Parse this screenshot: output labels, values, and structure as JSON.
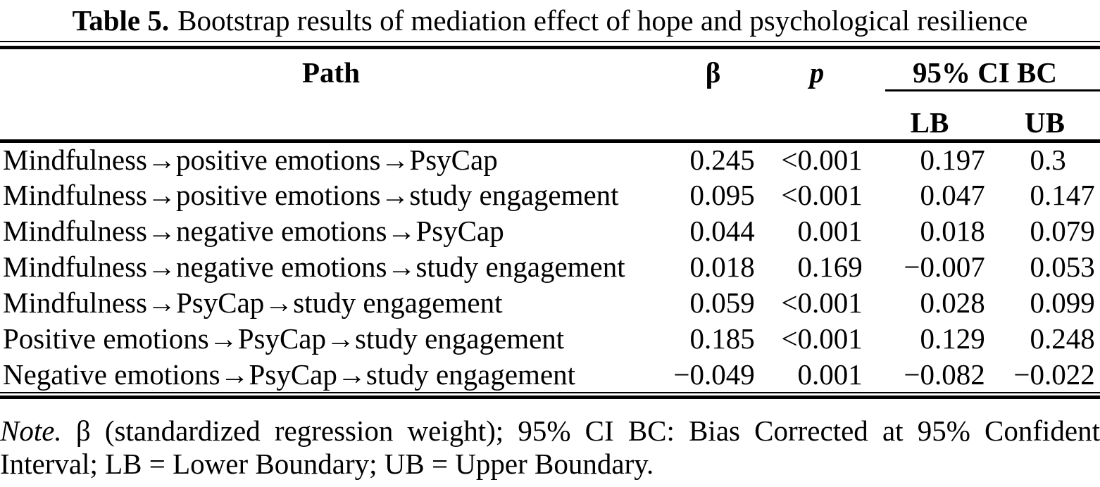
{
  "caption": {
    "label": "Table 5.",
    "text": "Bootstrap results of mediation effect of hope and psychological resilience"
  },
  "table": {
    "headers": {
      "path": "Path",
      "beta": "β",
      "p": "p",
      "ci_group": "95% CI BC",
      "lb": "LB",
      "ub": "UB"
    },
    "rows": [
      {
        "path": "Mindfulness→positive emotions→PsyCap",
        "beta": "0.245",
        "p": "<0.001",
        "lb": "0.197",
        "ub": "0.3"
      },
      {
        "path": "Mindfulness→positive emotions→study engagement",
        "beta": "0.095",
        "p": "<0.001",
        "lb": "0.047",
        "ub": "0.147"
      },
      {
        "path": "Mindfulness→negative emotions→PsyCap",
        "beta": "0.044",
        "p": "0.001",
        "lb": "0.018",
        "ub": "0.079"
      },
      {
        "path": "Mindfulness→negative emotions→study engagement",
        "beta": "0.018",
        "p": "0.169",
        "lb": "−0.007",
        "ub": "0.053"
      },
      {
        "path": "Mindfulness→PsyCap→study engagement",
        "beta": "0.059",
        "p": "<0.001",
        "lb": "0.028",
        "ub": "0.099"
      },
      {
        "path": "Positive emotions→PsyCap→study engagement",
        "beta": "0.185",
        "p": "<0.001",
        "lb": "0.129",
        "ub": "0.248"
      },
      {
        "path": "Negative emotions→PsyCap→study engagement",
        "beta": "−0.049",
        "p": "0.001",
        "lb": "−0.082",
        "ub": "−0.022"
      }
    ]
  },
  "note": {
    "prefix": "Note.",
    "line1_rest": "β (standardized regression weight); 95% CI BC: Bias Corrected at 95% Confident",
    "line2": "Interval; LB = Lower Boundary; UB = Upper Boundary."
  }
}
